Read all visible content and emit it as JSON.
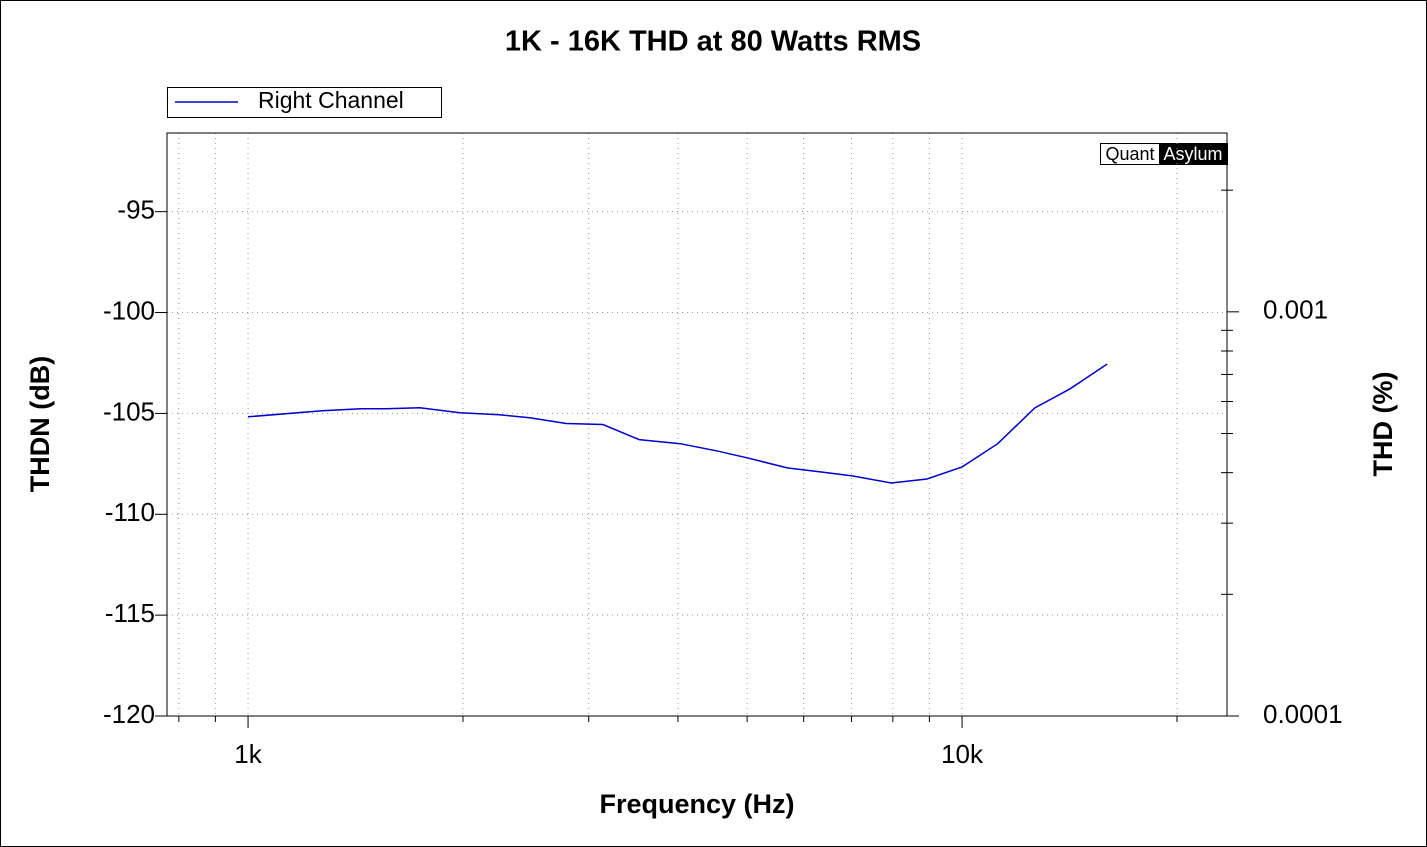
{
  "chart_data": {
    "type": "line",
    "title": "1K - 16K THD at 80 Watts RMS",
    "xlabel": "Frequency (Hz)",
    "ylabel": "THDN (dB)",
    "y2label": "THD (%)",
    "watermark": [
      "Quant",
      "Asylum"
    ],
    "x": [
      1000,
      1270,
      1440,
      1560,
      1740,
      1980,
      2250,
      2480,
      2790,
      3140,
      3530,
      4030,
      4520,
      5000,
      5690,
      6330,
      7020,
      7960,
      8930,
      10000,
      11220,
      12650,
      14170,
      15970
    ],
    "series": [
      {
        "name": "Right Channel",
        "color": "#0000cc",
        "values": [
          -105.17,
          -104.87,
          -104.77,
          -104.77,
          -104.72,
          -104.97,
          -105.07,
          -105.22,
          -105.5,
          -105.55,
          -106.3,
          -106.5,
          -106.85,
          -107.2,
          -107.7,
          -107.9,
          -108.1,
          -108.45,
          -108.25,
          -107.65,
          -106.5,
          -104.72,
          -103.78,
          -102.55
        ]
      }
    ],
    "xscale": "log",
    "xlim": [
      770,
      23500
    ],
    "xticks": [
      {
        "value": 1000,
        "label": "1k"
      },
      {
        "value": 10000,
        "label": "10k"
      }
    ],
    "xminorticks": [
      800,
      900,
      2000,
      3000,
      4000,
      5000,
      6000,
      7000,
      8000,
      9000,
      20000
    ],
    "ylim": [
      -120,
      -91.1
    ],
    "yticks": [
      -120,
      -115,
      -110,
      -105,
      -100,
      -95
    ],
    "y2scale": "log",
    "y2lim": [
      0.0001,
      0.00277
    ],
    "y2ticks": [
      0.0001,
      0.001
    ],
    "y2minorticks": [
      0.0002,
      0.0003,
      0.0004,
      0.0005,
      0.0006,
      0.0007,
      0.0008,
      0.0009,
      0.002
    ],
    "grid": true,
    "legend": "top-left"
  }
}
